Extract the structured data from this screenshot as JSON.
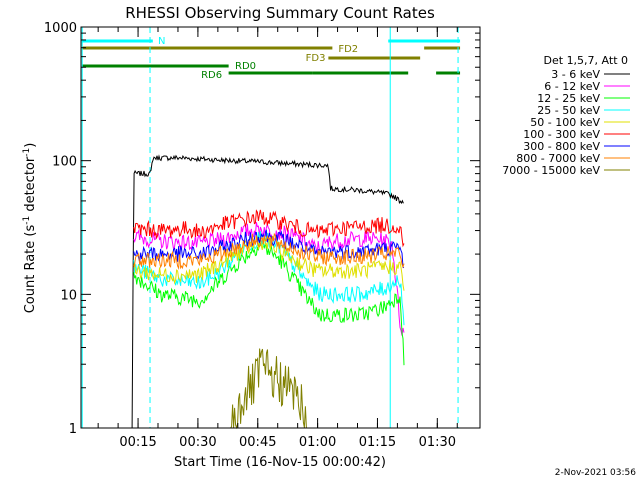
{
  "chart_data": {
    "type": "line",
    "title": "RHESSI Observing Summary Count Rates",
    "xlabel": "Start Time (16-Nov-15 00:00:42)",
    "ylabel_main": "Count Rate (s",
    "ylabel_exp1": "-1",
    "ylabel_mid": " detector",
    "ylabel_exp2": "-1",
    "ylabel_end": ")",
    "yscale": "log",
    "ylim": [
      1,
      1000
    ],
    "xlim_minutes": [
      0,
      100
    ],
    "x_ticks": [
      {
        "label": "00:15",
        "m": 14.3
      },
      {
        "label": "00:30",
        "m": 29.3
      },
      {
        "label": "00:45",
        "m": 44.3
      },
      {
        "label": "01:00",
        "m": 59.3
      },
      {
        "label": "01:15",
        "m": 74.3
      },
      {
        "label": "01:30",
        "m": 89.3
      }
    ],
    "y_ticks": [
      {
        "label": "1",
        "v": 1
      },
      {
        "label": "10",
        "v": 10
      },
      {
        "label": "100",
        "v": 100
      },
      {
        "label": "1000",
        "v": 1000
      }
    ],
    "legend_title": "Det 1,5,7, Att 0",
    "series": [
      {
        "name": "3 - 6 keV",
        "color": "#000000",
        "pts": [
          [
            12.8,
            1
          ],
          [
            13.2,
            80
          ],
          [
            17.5,
            80
          ],
          [
            18,
            105
          ],
          [
            25,
            105
          ],
          [
            35,
            101
          ],
          [
            45,
            98
          ],
          [
            55,
            94
          ],
          [
            62,
            92
          ],
          [
            62.5,
            62
          ],
          [
            70,
            60
          ],
          [
            76,
            57
          ],
          [
            78,
            55
          ],
          [
            80,
            50
          ],
          [
            81,
            50
          ]
        ]
      },
      {
        "name": "6 - 12 keV",
        "color": "#ff00ff",
        "pts": [
          [
            13.2,
            27
          ],
          [
            20,
            25
          ],
          [
            30,
            24
          ],
          [
            36,
            26
          ],
          [
            40,
            29
          ],
          [
            45,
            31
          ],
          [
            50,
            29
          ],
          [
            55,
            26
          ],
          [
            59,
            22
          ],
          [
            63,
            25
          ],
          [
            70,
            26
          ],
          [
            75,
            26
          ],
          [
            78,
            24
          ],
          [
            80,
            6
          ],
          [
            81,
            5
          ]
        ]
      },
      {
        "name": "12 - 25 keV",
        "color": "#00ff00",
        "pts": [
          [
            13.2,
            14
          ],
          [
            20,
            10
          ],
          [
            30,
            9
          ],
          [
            34,
            12
          ],
          [
            40,
            18
          ],
          [
            45,
            24
          ],
          [
            50,
            18
          ],
          [
            57,
            9
          ],
          [
            60,
            7
          ],
          [
            65,
            7
          ],
          [
            70,
            7
          ],
          [
            76,
            8
          ],
          [
            80,
            10
          ],
          [
            81,
            3
          ]
        ]
      },
      {
        "name": "25 - 50 keV",
        "color": "#00ffff",
        "pts": [
          [
            13.2,
            16
          ],
          [
            20,
            13
          ],
          [
            30,
            12
          ],
          [
            35,
            15
          ],
          [
            40,
            21
          ],
          [
            45,
            27
          ],
          [
            50,
            22
          ],
          [
            57,
            12
          ],
          [
            60,
            10
          ],
          [
            65,
            10
          ],
          [
            70,
            10
          ],
          [
            76,
            11
          ],
          [
            80,
            13
          ],
          [
            81,
            6
          ]
        ]
      },
      {
        "name": "50 - 100 keV",
        "color": "#e0e000",
        "pts": [
          [
            13.2,
            15
          ],
          [
            20,
            14
          ],
          [
            30,
            14
          ],
          [
            35,
            17
          ],
          [
            40,
            21
          ],
          [
            45,
            25
          ],
          [
            50,
            21
          ],
          [
            55,
            17
          ],
          [
            59,
            15
          ],
          [
            63,
            15
          ],
          [
            70,
            15
          ],
          [
            76,
            16
          ],
          [
            80,
            16
          ],
          [
            81,
            11
          ]
        ]
      },
      {
        "name": "100 - 300 keV",
        "color": "#ff0000",
        "pts": [
          [
            13.2,
            31
          ],
          [
            20,
            30
          ],
          [
            27,
            31
          ],
          [
            30,
            29
          ],
          [
            35,
            33
          ],
          [
            40,
            36
          ],
          [
            45,
            38
          ],
          [
            50,
            35
          ],
          [
            55,
            31
          ],
          [
            59,
            29
          ],
          [
            63,
            31
          ],
          [
            70,
            32
          ],
          [
            76,
            33
          ],
          [
            80,
            32
          ],
          [
            81,
            22
          ]
        ]
      },
      {
        "name": "300 - 800 keV",
        "color": "#0000ff",
        "pts": [
          [
            13.2,
            20
          ],
          [
            20,
            20
          ],
          [
            30,
            20
          ],
          [
            35,
            22
          ],
          [
            40,
            25
          ],
          [
            45,
            28
          ],
          [
            50,
            26
          ],
          [
            55,
            23
          ],
          [
            59,
            20
          ],
          [
            63,
            21
          ],
          [
            70,
            21
          ],
          [
            76,
            22
          ],
          [
            80,
            22
          ],
          [
            81,
            16
          ]
        ]
      },
      {
        "name": "800 - 7000 keV",
        "color": "#ff8000",
        "pts": [
          [
            13.2,
            18
          ],
          [
            20,
            18
          ],
          [
            30,
            18
          ],
          [
            35,
            20
          ],
          [
            40,
            23
          ],
          [
            45,
            26
          ],
          [
            50,
            24
          ],
          [
            55,
            21
          ],
          [
            59,
            19
          ],
          [
            63,
            19
          ],
          [
            70,
            19
          ],
          [
            76,
            20
          ],
          [
            80,
            20
          ],
          [
            81,
            15
          ]
        ]
      },
      {
        "name": "7000 - 15000 keV",
        "color": "#808000",
        "pts": [
          [
            37.5,
            1
          ],
          [
            41,
            1.8
          ],
          [
            44,
            2.2
          ],
          [
            45,
            3
          ],
          [
            47,
            2.5
          ],
          [
            50,
            2.2
          ],
          [
            54,
            1.8
          ],
          [
            56,
            1.3
          ],
          [
            57,
            1
          ]
        ]
      }
    ],
    "flags": [
      {
        "label": "N",
        "color": "#00ffff",
        "label_m": 19.3,
        "label_y": 40,
        "segs": [
          [
            0.3,
            18
          ],
          [
            77,
            95
          ]
        ],
        "y": 41,
        "thick": 3
      },
      {
        "label": "FD2",
        "color": "#808000",
        "label_m": 64.5,
        "label_y": 48,
        "segs": [
          [
            0.3,
            63
          ],
          [
            86,
            95
          ]
        ],
        "y": 48,
        "thick": 3
      },
      {
        "label": "FD3",
        "color": "#808000",
        "label_m": 56.3,
        "label_y": 57,
        "segs": [
          [
            62,
            85
          ]
        ],
        "y": 58,
        "thick": 3
      },
      {
        "label": "RD0",
        "color": "#008000",
        "label_m": 38.6,
        "label_y": 65,
        "segs": [
          [
            0.3,
            37
          ]
        ],
        "y": 66,
        "thick": 3
      },
      {
        "label": "RD6",
        "color": "#008000",
        "label_m": 30.1,
        "label_y": 74,
        "segs": [
          [
            37,
            58
          ],
          [
            58,
            82
          ],
          [
            89,
            95
          ]
        ],
        "y": 73,
        "thick": 3
      }
    ],
    "vlines": [
      {
        "m": 0.3,
        "color": "#00ffff",
        "style": "solid"
      },
      {
        "m": 77.5,
        "color": "#00ffff",
        "style": "solid"
      },
      {
        "m": 17.3,
        "color": "#00ffff",
        "style": "dash"
      },
      {
        "m": 94.5,
        "color": "#00ffff",
        "style": "dash"
      }
    ]
  },
  "footer": {
    "timestamp": "2-Nov-2021 03:56"
  }
}
